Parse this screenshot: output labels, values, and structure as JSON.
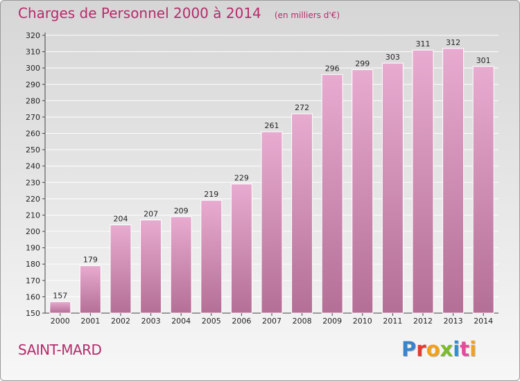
{
  "title": "Charges de Personnel 2000 à 2014",
  "unit_label": "(en milliers d'€)",
  "commune": "SAINT-MARD",
  "logo": {
    "letters": [
      {
        "ch": "P",
        "color": "#3a84c9"
      },
      {
        "ch": "r",
        "color": "#e23a2c"
      },
      {
        "ch": "o",
        "color": "#f0a21b"
      },
      {
        "ch": "x",
        "color": "#7dbb2a"
      },
      {
        "ch": "i",
        "color": "#2f8fd0"
      },
      {
        "ch": "t",
        "color": "#e54b9b"
      },
      {
        "ch": "i",
        "color": "#f0a21b"
      }
    ]
  },
  "colors": {
    "bar_top": "#e8abd0",
    "bar_bottom": "#b46f96",
    "grid": "#ffffff",
    "text": "#222222"
  },
  "chart_data": {
    "type": "bar",
    "categories": [
      "2000",
      "2001",
      "2002",
      "2003",
      "2004",
      "2005",
      "2006",
      "2007",
      "2008",
      "2009",
      "2010",
      "2011",
      "2012",
      "2013",
      "2014"
    ],
    "values": [
      157,
      179,
      204,
      207,
      209,
      219,
      229,
      261,
      272,
      296,
      299,
      303,
      311,
      312,
      301
    ],
    "ylim": [
      150,
      320
    ],
    "yticks": [
      150,
      160,
      170,
      180,
      190,
      200,
      210,
      220,
      230,
      240,
      250,
      260,
      270,
      280,
      290,
      300,
      310,
      320
    ],
    "grid": true,
    "data_labels": true
  }
}
